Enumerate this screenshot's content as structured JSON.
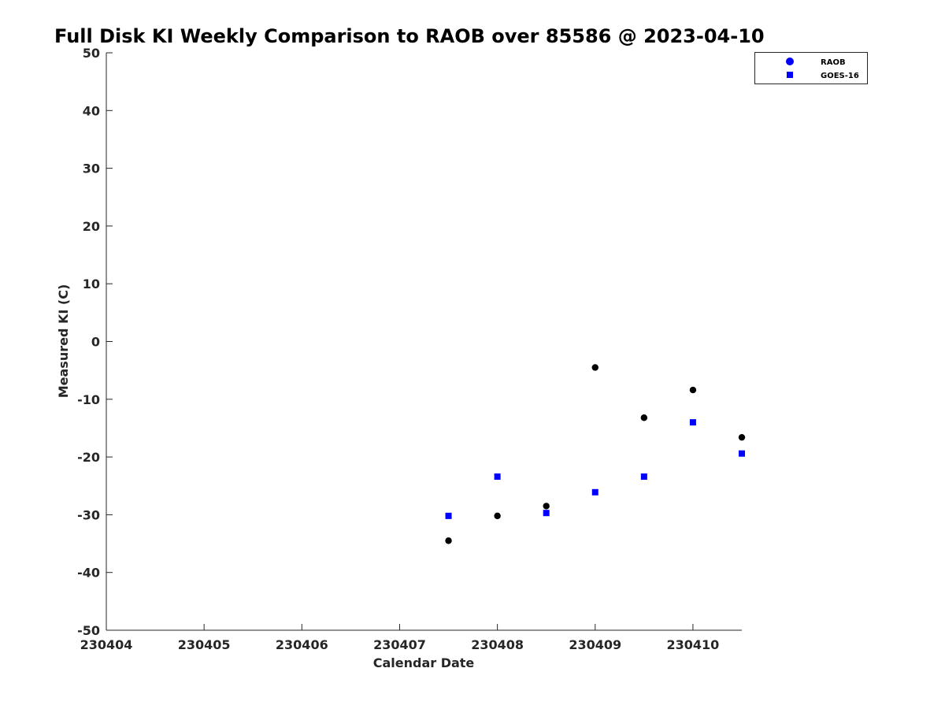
{
  "chart_data": {
    "type": "scatter",
    "title": "Full Disk KI Weekly Comparison to RAOB over 85586 @ 2023-04-10",
    "xlabel": "Calendar Date",
    "ylabel": "Measured KI (C)",
    "x_ticks": [
      "230404",
      "230405",
      "230406",
      "230407",
      "230408",
      "230409",
      "230410"
    ],
    "y_ticks": [
      50,
      40,
      30,
      20,
      10,
      0,
      -10,
      -20,
      -30,
      -40,
      -50
    ],
    "xlim": [
      "230404",
      "230410.5"
    ],
    "ylim": [
      -50,
      50
    ],
    "grid": false,
    "legend": {
      "position": "top-right"
    },
    "series": [
      {
        "name": "RAOB",
        "legend_marker": "circle",
        "legend_color": "#0000ff",
        "marker_color": "#000000",
        "points": [
          {
            "x": "230407.5",
            "y": -34.5
          },
          {
            "x": "230408",
            "y": -30.2
          },
          {
            "x": "230408.5",
            "y": -28.5
          },
          {
            "x": "230409",
            "y": -4.5
          },
          {
            "x": "230409.5",
            "y": -13.2
          },
          {
            "x": "230410",
            "y": -8.4
          },
          {
            "x": "230410.5",
            "y": -16.6
          }
        ]
      },
      {
        "name": "GOES-16",
        "legend_marker": "square",
        "legend_color": "#0000ff",
        "marker_color": "#0000ff",
        "points": [
          {
            "x": "230407.5",
            "y": -30.2
          },
          {
            "x": "230408",
            "y": -23.4
          },
          {
            "x": "230408.5",
            "y": -29.7
          },
          {
            "x": "230409",
            "y": -26.1
          },
          {
            "x": "230409.5",
            "y": -23.4
          },
          {
            "x": "230410",
            "y": -14.0
          },
          {
            "x": "230410.5",
            "y": -19.4
          }
        ]
      }
    ]
  }
}
